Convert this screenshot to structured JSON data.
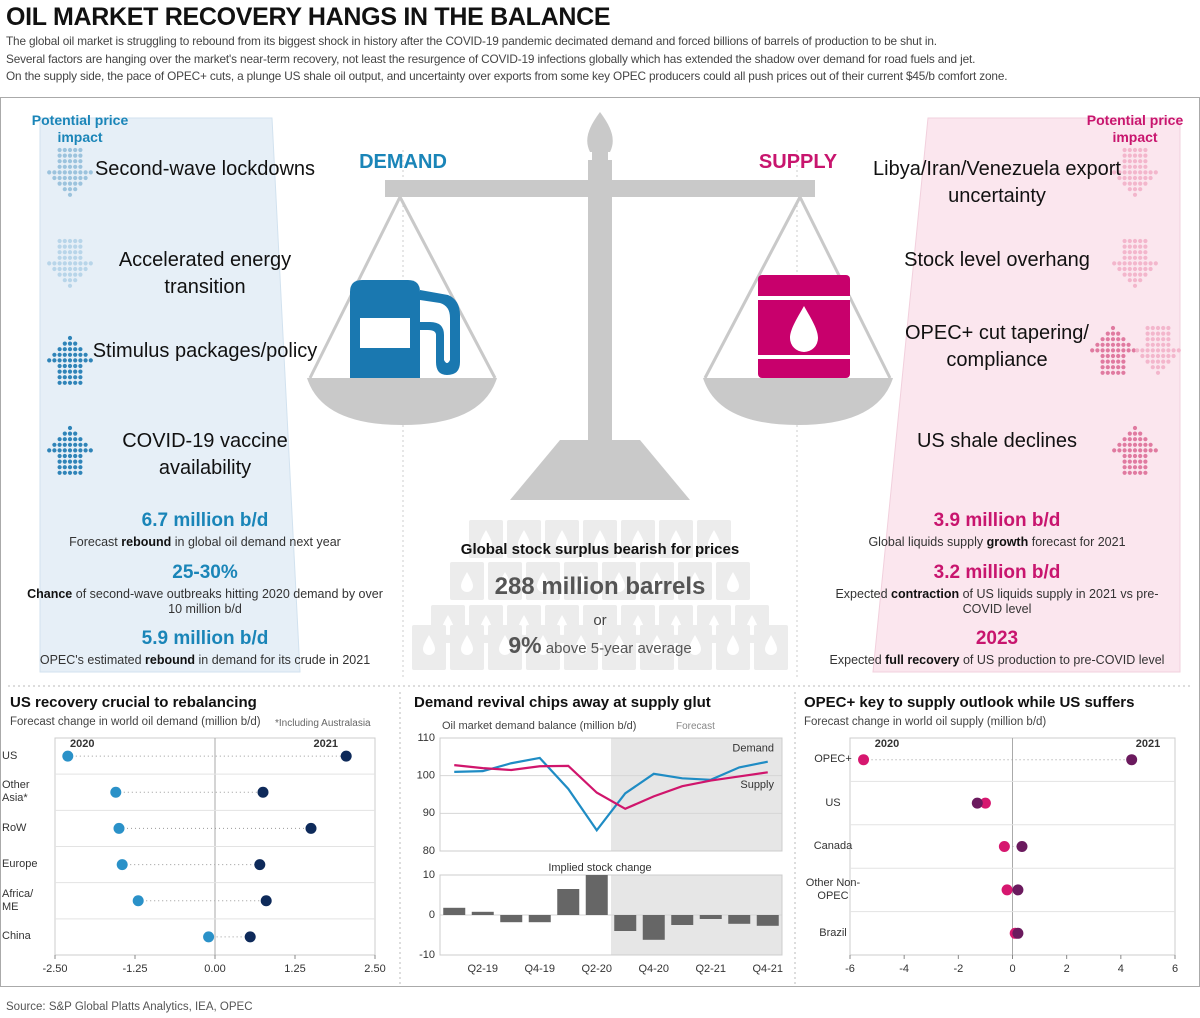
{
  "header": {
    "title": "OIL MARKET RECOVERY HANGS IN THE BALANCE",
    "lines": [
      "The global oil market is struggling to rebound from its biggest shock in history after the COVID-19 pandemic decimated demand and forced billions of barrels of production to be shut in.",
      "Several factors are hanging over the market's near-term recovery, not least the resurgence of COVID-19 infections globally which has extended the shadow over demand for road fuels and jet.",
      "On the supply side, the pace of OPEC+ cuts, a plunge US shale oil output, and uncertainty over exports from some key OPEC producers could all push prices out of their current $45/b comfort zone."
    ]
  },
  "demand": {
    "label": "DEMAND",
    "impact_label": "Potential price impact",
    "factors": [
      "Second-wave lockdowns",
      "Accelerated energy transition",
      "Stimulus packages/policy",
      "COVID-19 vaccine availability"
    ],
    "stats": [
      {
        "value": "6.7 million b/d",
        "note": [
          {
            "text": "Forecast "
          },
          {
            "text": "rebound",
            "bold": true
          },
          {
            "text": " in global oil demand next year"
          }
        ]
      },
      {
        "value": "25-30%",
        "note": [
          {
            "text": "Chance",
            "bold": true
          },
          {
            "text": " of second-wave outbreaks hitting 2020 demand by over 10 million b/d"
          }
        ]
      },
      {
        "value": "5.9 million b/d",
        "note": [
          {
            "text": "OPEC's estimated "
          },
          {
            "text": "rebound",
            "bold": true
          },
          {
            "text": " in demand for its crude in 2021"
          }
        ]
      }
    ]
  },
  "supply": {
    "label": "SUPPLY",
    "impact_label": "Potential price impact",
    "factors": [
      "Libya/Iran/Venezuela export uncertainty",
      "Stock level overhang",
      "OPEC+ cut tapering/ compliance",
      "US shale declines"
    ],
    "stats": [
      {
        "value": "3.9 million b/d",
        "note": [
          {
            "text": "Global liquids supply "
          },
          {
            "text": "growth",
            "bold": true
          },
          {
            "text": " forecast for 2021"
          }
        ]
      },
      {
        "value": "3.2 million b/d",
        "note": [
          {
            "text": "Expected "
          },
          {
            "text": "contraction",
            "bold": true
          },
          {
            "text": " of US liquids supply in 2021 vs pre-COVID level"
          }
        ]
      },
      {
        "value": "2023",
        "note": [
          {
            "text": "Expected "
          },
          {
            "text": "full recovery",
            "bold": true
          },
          {
            "text": " of US production to pre-COVID level"
          }
        ]
      }
    ]
  },
  "center": {
    "title": "Global stock surplus bearish for prices",
    "amount": "288 million barrels",
    "or": "or",
    "share": "9%",
    "share_text": " above 5-year average"
  },
  "chart_data": [
    {
      "type": "dot",
      "title": "US recovery crucial to rebalancing",
      "subtitle": "Forecast change in world oil demand (million b/d)",
      "note": "*Including Australasia",
      "categories": [
        "US",
        "Other Asia*",
        "RoW",
        "Europe",
        "Africa/ ME",
        "China"
      ],
      "series": [
        {
          "name": "2020",
          "color": "#2a91c8",
          "values": [
            -2.3,
            -1.55,
            -1.5,
            -1.45,
            -1.2,
            -0.1
          ]
        },
        {
          "name": "2021",
          "color": "#0e2a5a",
          "values": [
            2.05,
            0.75,
            1.5,
            0.7,
            0.8,
            0.55
          ]
        }
      ],
      "xlim": [
        -2.5,
        2.5
      ],
      "xticks": [
        {
          "value": -2.5,
          "label": "-2.50"
        },
        {
          "value": -1.25,
          "label": "-1.25"
        },
        {
          "value": 0,
          "label": "0.00"
        },
        {
          "value": 1.25,
          "label": "1.25"
        },
        {
          "value": 2.5,
          "label": "2.50"
        }
      ]
    },
    {
      "type": "line",
      "title": "Demand revival chips away at supply glut",
      "subtitle": "Oil market demand balance (million b/d)",
      "annotation": "Forecast",
      "categories": [
        null,
        "Q2-19",
        null,
        "Q4-19",
        null,
        "Q2-20",
        null,
        "Q4-20",
        null,
        "Q2-21",
        null,
        "Q4-21"
      ],
      "series": [
        {
          "name": "Demand",
          "color": "#1f8cc4",
          "values": [
            101,
            101.2,
            103.3,
            104.7,
            96.5,
            85.5,
            95.3,
            100.5,
            99.3,
            98.9,
            102.2,
            103.7
          ]
        },
        {
          "name": "Supply",
          "color": "#d0156c",
          "values": [
            102.8,
            102,
            101.5,
            102.5,
            102.6,
            95.5,
            91.2,
            94.5,
            97.2,
            98.7,
            99.8,
            100.9
          ]
        }
      ],
      "ylim": [
        80,
        110
      ],
      "yticks": [
        80,
        90,
        100,
        110
      ],
      "stock": {
        "title": "Implied stock change",
        "color": "#666666",
        "values": [
          1.8,
          0.8,
          -1.8,
          -1.8,
          6.5,
          10,
          -4,
          -6.2,
          -2.5,
          -1,
          -2.2,
          -2.7
        ],
        "ylim": [
          -10,
          10
        ],
        "yticks": [
          -10,
          0,
          10
        ]
      }
    },
    {
      "type": "dot",
      "title": "OPEC+ key to supply outlook while US suffers",
      "subtitle": "Forecast change in world oil supply (million b/d)",
      "categories": [
        "OPEC+",
        "US",
        "Canada",
        "Other Non- OPEC",
        "Brazil"
      ],
      "series": [
        {
          "name": "2020",
          "color": "#d6176f",
          "values": [
            -5.5,
            -1.0,
            -0.3,
            -0.2,
            0.1
          ]
        },
        {
          "name": "2021",
          "color": "#6b1a5e",
          "values": [
            4.4,
            -1.3,
            0.35,
            0.2,
            0.2
          ]
        }
      ],
      "xlim": [
        -6,
        6
      ],
      "xticks": [
        -6,
        -4,
        -2,
        0,
        2,
        4,
        6
      ]
    }
  ],
  "source": "Source: S&P Global Platts Analytics, IEA, OPEC"
}
